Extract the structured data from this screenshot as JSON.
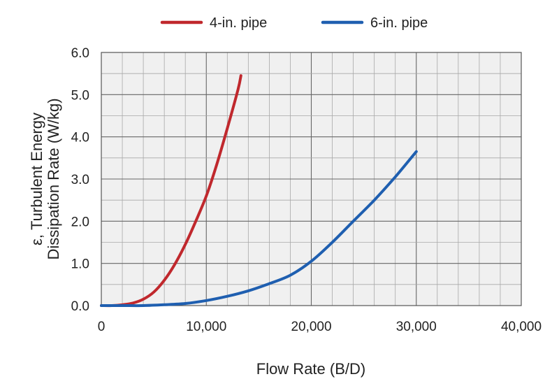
{
  "chart_data": {
    "type": "line",
    "title": "",
    "xlabel": "Flow Rate (B/D)",
    "ylabel_line1": "ε, Turbulent Energy",
    "ylabel_line2": "Dissipation Rate (W/kg)",
    "xlim": [
      0,
      40000
    ],
    "ylim": [
      0,
      6.0
    ],
    "x_ticks": [
      "0",
      "10,000",
      "20,000",
      "30,000",
      "40,000"
    ],
    "y_ticks": [
      "0.0",
      "1.0",
      "2.0",
      "3.0",
      "4.0",
      "5.0",
      "6.0"
    ],
    "grid": true,
    "legend_position": "top-center",
    "series": [
      {
        "name": "4-in. pipe",
        "color": "#c0282d",
        "x": [
          0,
          1000,
          2000,
          3000,
          4000,
          5000,
          6000,
          7000,
          8000,
          9000,
          10000,
          11000,
          12000,
          13000,
          13300
        ],
        "y": [
          0.0,
          0.0,
          0.02,
          0.06,
          0.15,
          0.32,
          0.6,
          0.98,
          1.45,
          2.0,
          2.6,
          3.35,
          4.2,
          5.1,
          5.45
        ]
      },
      {
        "name": "6-in. pipe",
        "color": "#1f5fb0",
        "x": [
          0,
          2000,
          4000,
          6000,
          8000,
          10000,
          12000,
          14000,
          16000,
          18000,
          20000,
          22000,
          24000,
          26000,
          28000,
          30000
        ],
        "y": [
          0.0,
          0.0,
          0.0,
          0.02,
          0.05,
          0.12,
          0.22,
          0.35,
          0.52,
          0.72,
          1.05,
          1.5,
          2.0,
          2.5,
          3.05,
          3.65
        ]
      }
    ]
  }
}
